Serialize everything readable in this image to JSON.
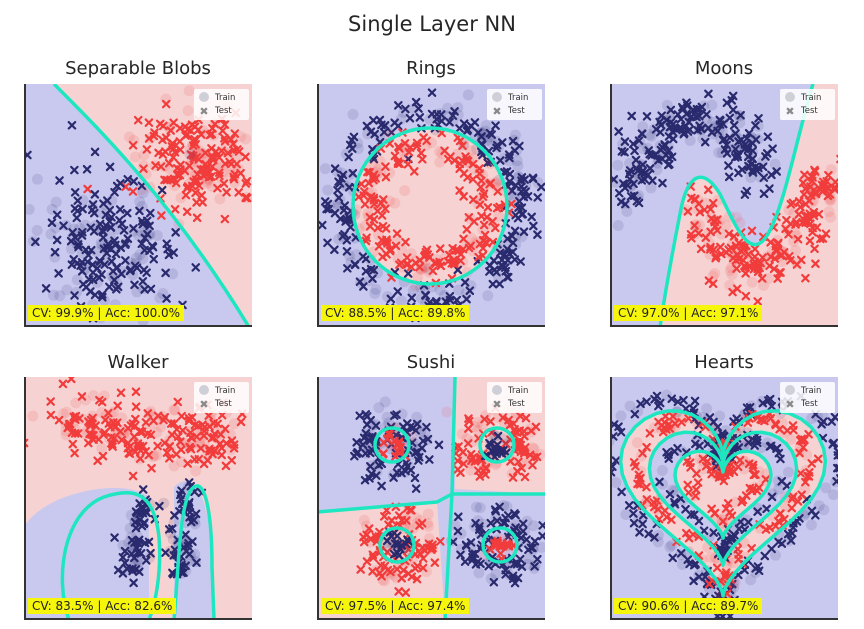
{
  "suptitle": "Single Layer NN",
  "legend": {
    "train": "Train",
    "test": "Test"
  },
  "colors": {
    "class_a": "#2a2a6e",
    "class_b": "#f23c3c",
    "bg_a": "#c9c9f0",
    "bg_b": "#f6d2d2",
    "boundary": "#1ee6c0",
    "metric_box": "#f6f50c"
  },
  "chart_data": [
    {
      "type": "scatter",
      "title": "Separable Blobs",
      "metric": "CV: 99.9% | Acc: 100.0%"
    },
    {
      "type": "scatter",
      "title": "Rings",
      "metric": "CV: 88.5% | Acc: 89.8%"
    },
    {
      "type": "scatter",
      "title": "Moons",
      "metric": "CV: 97.0% | Acc: 97.1%"
    },
    {
      "type": "scatter",
      "title": "Walker",
      "metric": "CV: 83.5% | Acc: 82.6%"
    },
    {
      "type": "scatter",
      "title": "Sushi",
      "metric": "CV: 97.5% | Acc: 97.4%"
    },
    {
      "type": "scatter",
      "title": "Hearts",
      "metric": "CV: 90.6% | Acc: 89.7%"
    }
  ]
}
